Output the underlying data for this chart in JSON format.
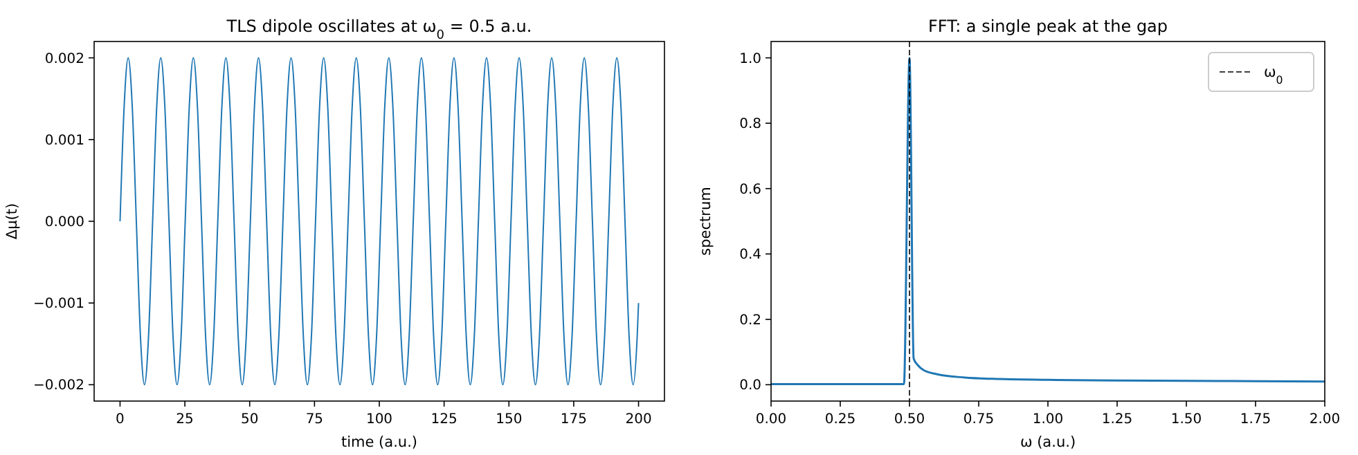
{
  "chart_data": [
    {
      "type": "line",
      "title": "TLS dipole oscillates at ω$_{0}$ = 0.5 a.u.",
      "xlabel": "time (a.u.)",
      "ylabel": "Δμ(t)",
      "xlim": [
        -10,
        210
      ],
      "ylim": [
        -0.0022,
        0.0022
      ],
      "xticks": [
        0,
        25,
        50,
        75,
        100,
        125,
        150,
        175,
        200
      ],
      "yticks": [
        {
          "value": -0.002,
          "label": "−0.002"
        },
        {
          "value": -0.001,
          "label": "−0.001"
        },
        {
          "value": 0,
          "label": "0.000"
        },
        {
          "value": 0.001,
          "label": "0.001"
        },
        {
          "value": 0.002,
          "label": "0.002"
        }
      ],
      "grid": false,
      "legend": false,
      "x": [
        0,
        1.57,
        3.14,
        4.71,
        6.28,
        7.85,
        9.42,
        11.0,
        12.57,
        14.14,
        15.71,
        17.28,
        18.85,
        20.42,
        21.99,
        23.56,
        25.13,
        26.7,
        28.27,
        29.85,
        31.42,
        32.99,
        34.56,
        36.13,
        37.7,
        39.27,
        40.84,
        42.41,
        43.98,
        45.55,
        47.12,
        48.69,
        50.27,
        51.84,
        53.41,
        54.98,
        56.55,
        58.12,
        59.69,
        61.26,
        62.83,
        64.4,
        65.97,
        67.54,
        69.12,
        70.69,
        72.26,
        73.83,
        75.4,
        76.97,
        78.54,
        80.11,
        81.68,
        83.25,
        84.82,
        86.39,
        87.96,
        89.54,
        91.11,
        92.68,
        94.25,
        95.82,
        97.39,
        98.96,
        100.53,
        102.1,
        103.67,
        105.24,
        106.81,
        108.38,
        109.96,
        111.53,
        113.1,
        114.67,
        116.24,
        117.81,
        119.38,
        120.95,
        122.52,
        124.09,
        125.66,
        127.23,
        128.81,
        130.38,
        131.95,
        133.52,
        135.09,
        136.66,
        138.23,
        139.8,
        141.37,
        142.94,
        144.51,
        146.08,
        147.65,
        149.23,
        150.8,
        152.37,
        153.94,
        155.51,
        157.08,
        158.65,
        160.22,
        161.79,
        163.36,
        164.93,
        166.5,
        168.07,
        169.65,
        171.22,
        172.79,
        174.36,
        175.93,
        177.5,
        179.07,
        180.64,
        182.21,
        183.78,
        185.35,
        186.92,
        188.5,
        190.07,
        191.64,
        193.21,
        194.78,
        196.35,
        197.92,
        199.49,
        200
      ],
      "series": [
        {
          "color": "#1f77b4",
          "values": [
            0,
            0.0014,
            0.002,
            0.0014,
            0,
            -0.0014,
            -0.002,
            -0.0014,
            0,
            0.0014,
            0.002,
            0.0014,
            0,
            -0.0014,
            -0.002,
            -0.0014,
            0,
            0.0014,
            0.002,
            0.0014,
            0,
            -0.0014,
            -0.002,
            -0.0014,
            0,
            0.0014,
            0.002,
            0.0014,
            0,
            -0.0014,
            -0.002,
            -0.0014,
            0,
            0.0014,
            0.002,
            0.0014,
            0,
            -0.0014,
            -0.002,
            -0.0014,
            0,
            0.0014,
            0.002,
            0.0014,
            0,
            -0.0014,
            -0.002,
            -0.0014,
            0,
            0.0014,
            0.002,
            0.0014,
            0,
            -0.0014,
            -0.002,
            -0.0014,
            0,
            0.0014,
            0.002,
            0.0014,
            0,
            -0.0014,
            -0.002,
            -0.0014,
            0,
            0.0014,
            0.002,
            0.0014,
            0,
            -0.0014,
            -0.002,
            -0.0014,
            0,
            0.0014,
            0.002,
            0.0014,
            0,
            -0.0014,
            -0.002,
            -0.0014,
            0,
            0.0014,
            0.002,
            0.0014,
            0,
            -0.0014,
            -0.002,
            -0.0014,
            0,
            0.0014,
            0.002,
            0.0014,
            0,
            -0.0014,
            -0.002,
            -0.0014,
            0,
            0.0014,
            0.002,
            0.0014,
            0,
            -0.0014,
            -0.002,
            -0.0014,
            0,
            0.0014,
            0.002,
            0.0014,
            0,
            -0.0014,
            -0.002,
            -0.0014,
            0,
            0.0014,
            0.002,
            0.0014,
            0,
            -0.0014,
            -0.002,
            -0.0014,
            0,
            0.0014,
            0.002,
            0.0014,
            0,
            -0.0014,
            -0.002,
            -0.0014,
            -0.001
          ]
        }
      ]
    },
    {
      "type": "line",
      "title": "FFT: a single peak at the gap",
      "xlabel": "ω (a.u.)",
      "ylabel": "spectrum",
      "xlim": [
        0,
        2
      ],
      "ylim": [
        -0.05,
        1.05
      ],
      "xticks": [
        {
          "value": 0,
          "label": "0.00"
        },
        {
          "value": 0.25,
          "label": "0.25"
        },
        {
          "value": 0.5,
          "label": "0.50"
        },
        {
          "value": 0.75,
          "label": "0.75"
        },
        {
          "value": 1,
          "label": "1.00"
        },
        {
          "value": 1.25,
          "label": "1.25"
        },
        {
          "value": 1.5,
          "label": "1.50"
        },
        {
          "value": 1.75,
          "label": "1.75"
        },
        {
          "value": 2,
          "label": "2.00"
        }
      ],
      "yticks": [
        {
          "value": 0,
          "label": "0.0"
        },
        {
          "value": 0.2,
          "label": "0.2"
        },
        {
          "value": 0.4,
          "label": "0.4"
        },
        {
          "value": 0.6,
          "label": "0.6"
        },
        {
          "value": 0.8,
          "label": "0.8"
        },
        {
          "value": 1,
          "label": "1.0"
        }
      ],
      "grid": false,
      "legend": "top right",
      "x": [
        0,
        0.47,
        0.48,
        0.5,
        0.515,
        0.53,
        0.55,
        0.6,
        0.7,
        0.8,
        1.0,
        1.25,
        1.5,
        1.75,
        2.0
      ],
      "series": [
        {
          "color": "#1f77b4",
          "values": [
            0.002,
            0.002,
            0.002,
            1,
            0.08,
            0.06,
            0.045,
            0.032,
            0.022,
            0.018,
            0.015,
            0.013,
            0.012,
            0.011,
            0.01
          ]
        }
      ],
      "ref_lines": [
        {
          "axis": "x",
          "value": 0.5,
          "label": "ω$_{0}$",
          "color": "#000000",
          "line_style": "dashed"
        }
      ]
    }
  ]
}
